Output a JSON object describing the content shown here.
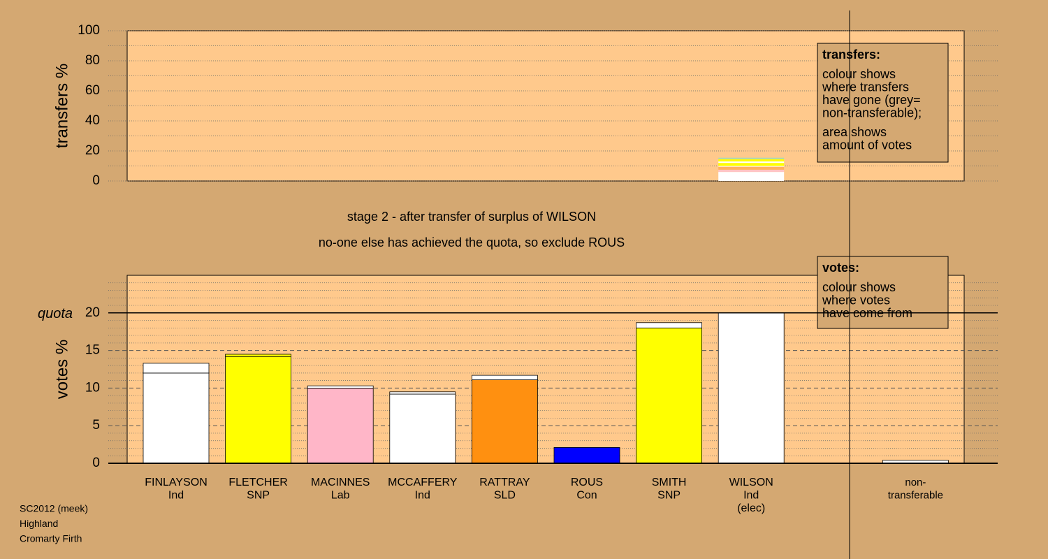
{
  "chart_data": [
    {
      "type": "bar",
      "stacked": true,
      "y_label": "transfers %",
      "ylim": [
        0,
        100
      ],
      "yticks": [
        0,
        20,
        40,
        60,
        80,
        100
      ],
      "yticks_minor": [
        10,
        30,
        50,
        70,
        90
      ],
      "series": [
        {
          "color": "#ffffff",
          "values": [
            null,
            null,
            null,
            null,
            null,
            null,
            null,
            6,
            null,
            null
          ]
        },
        {
          "color": "#ffc4c4",
          "values": [
            null,
            null,
            null,
            null,
            null,
            null,
            null,
            1.5,
            null,
            null
          ]
        },
        {
          "color": "#ffb060",
          "values": [
            null,
            null,
            null,
            null,
            null,
            null,
            null,
            2,
            null,
            null
          ]
        },
        {
          "color": "#ffffff",
          "values": [
            null,
            null,
            null,
            null,
            null,
            null,
            null,
            0.5,
            null,
            null
          ]
        },
        {
          "color": "#ffff00",
          "values": [
            null,
            null,
            null,
            null,
            null,
            null,
            null,
            2,
            null,
            null
          ]
        },
        {
          "color": "#ffffff",
          "values": [
            null,
            null,
            null,
            null,
            null,
            null,
            null,
            1,
            null,
            null
          ]
        },
        {
          "color": "#ffff00",
          "values": [
            null,
            null,
            null,
            null,
            null,
            null,
            null,
            1.5,
            null,
            null
          ]
        },
        {
          "color": "#b0d8b0",
          "values": [
            null,
            null,
            null,
            null,
            null,
            null,
            null,
            1,
            null,
            null
          ]
        }
      ],
      "legend": {
        "title": "transfers:",
        "lines": [
          "colour shows",
          "where transfers",
          "have gone (grey=",
          "non-transferable);",
          "area shows",
          "amount of votes"
        ]
      }
    },
    {
      "type": "bar",
      "stacked": true,
      "y_label": "votes %",
      "subtitle": [
        "stage 2 - after transfer of surplus of WILSON",
        "no-one else has achieved the quota, so exclude ROUS"
      ],
      "ylim": [
        0,
        25
      ],
      "yticks": [
        0,
        5,
        10,
        15,
        20
      ],
      "yticks_minor": [
        1,
        2,
        3,
        4,
        6,
        7,
        8,
        9,
        11,
        12,
        13,
        14,
        16,
        17,
        18,
        19,
        21,
        22,
        23,
        24
      ],
      "quota": {
        "label": "quota",
        "value": 20
      },
      "categories": [
        [
          "FINLAYSON",
          "Ind"
        ],
        [
          "FLETCHER",
          "SNP"
        ],
        [
          "MACINNES",
          "Lab"
        ],
        [
          "MCCAFFERY",
          "Ind"
        ],
        [
          "RATTRAY",
          "SLD"
        ],
        [
          "ROUS",
          "Con"
        ],
        [
          "SMITH",
          "SNP"
        ],
        [
          "WILSON",
          "Ind",
          "(elec)"
        ],
        null,
        [
          "non-",
          "transferable"
        ]
      ],
      "series": [
        {
          "colors": [
            "#ffffff",
            "#ffff00",
            "#ffb6c8",
            "#ffffff",
            "#ff9010",
            "#0000ff",
            "#ffff00",
            "#ffffff",
            null,
            null
          ],
          "values": [
            12,
            14.2,
            10,
            9.2,
            11.1,
            2.1,
            18,
            20,
            null,
            null
          ]
        },
        {
          "colors": [
            "#ffffff",
            "#ffff00",
            "#ffffff",
            "#ffffff",
            "#ffffff",
            null,
            "#ffffff",
            null,
            null,
            "#ffffff"
          ],
          "values": [
            1.3,
            0.3,
            0.3,
            0.3,
            0.6,
            null,
            0.7,
            null,
            null,
            0.4
          ]
        }
      ],
      "legend": {
        "title": "votes:",
        "lines": [
          "colour shows",
          "where votes",
          "have come from"
        ]
      }
    }
  ],
  "footer": [
    "SC2012 (meek)",
    "Highland",
    "Cromarty Firth"
  ]
}
